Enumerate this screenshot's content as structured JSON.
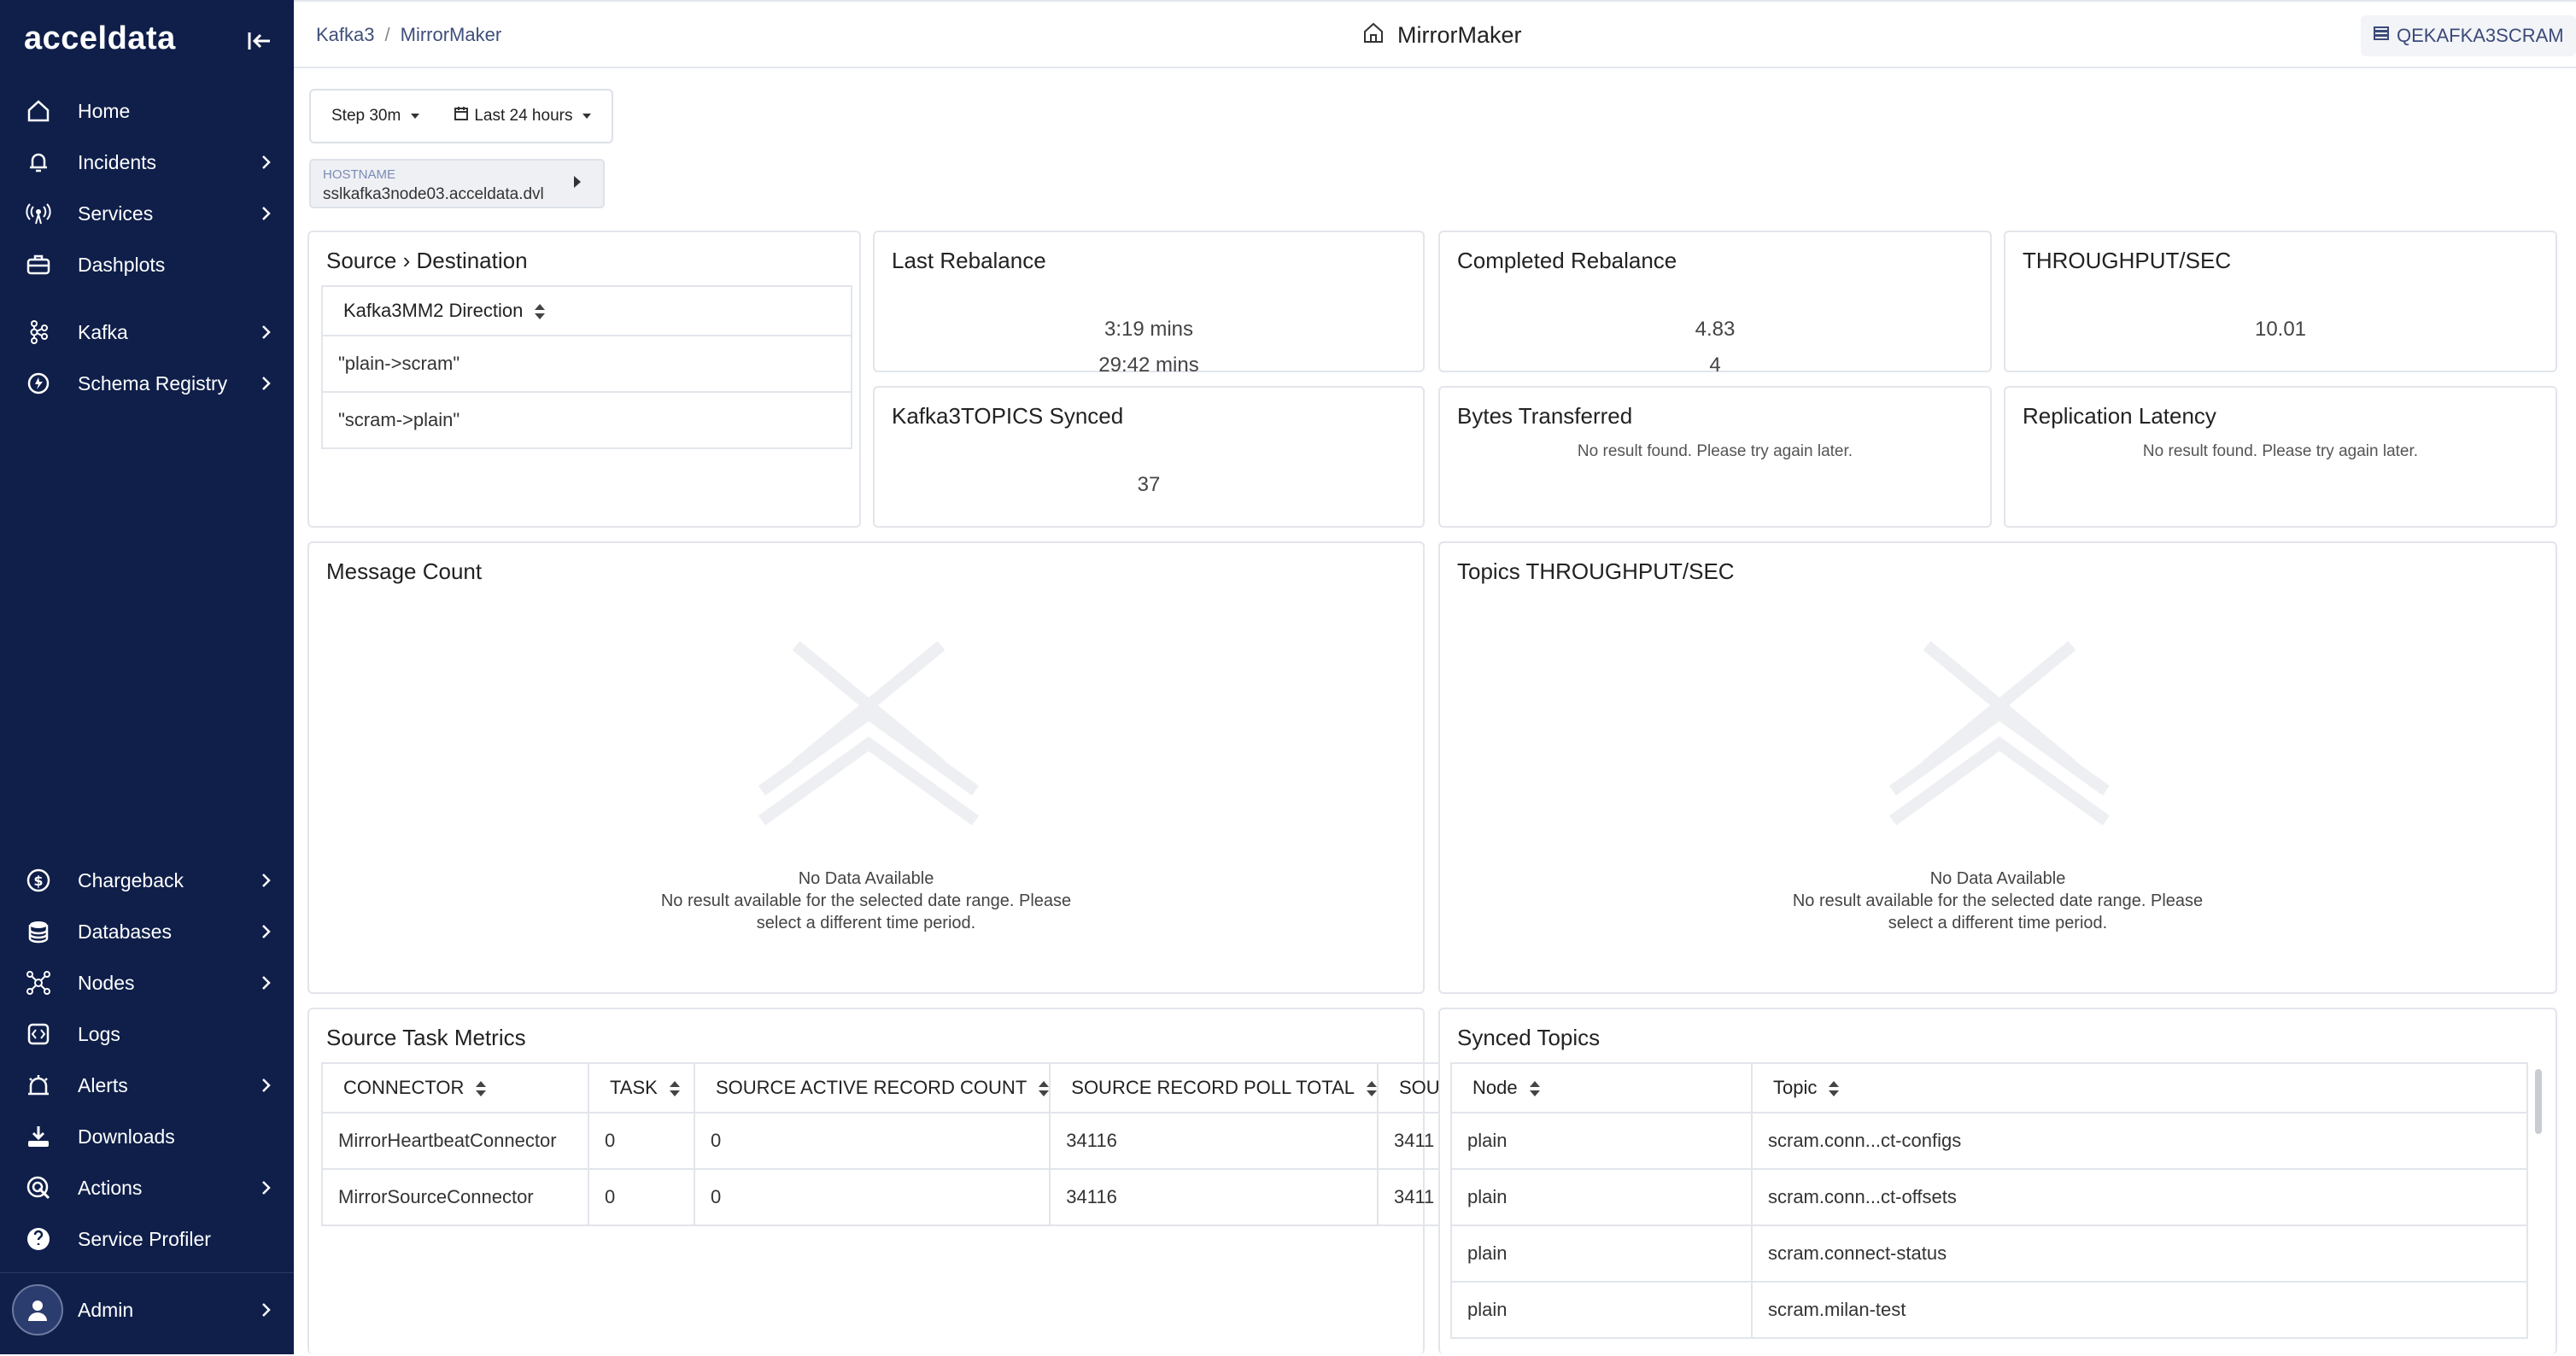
{
  "brand": {
    "logo": "acceldata"
  },
  "sidebar": {
    "items": [
      {
        "label": "Home"
      },
      {
        "label": "Incidents"
      },
      {
        "label": "Services"
      },
      {
        "label": "Dashplots"
      },
      {
        "label": "Kafka"
      },
      {
        "label": "Schema Registry"
      },
      {
        "label": "Chargeback"
      },
      {
        "label": "Databases"
      },
      {
        "label": "Nodes"
      },
      {
        "label": "Logs"
      },
      {
        "label": "Alerts"
      },
      {
        "label": "Downloads"
      },
      {
        "label": "Actions"
      },
      {
        "label": "Service Profiler"
      }
    ],
    "admin": {
      "label": "Admin"
    }
  },
  "header": {
    "breadcrumb": [
      "Kafka3",
      "MirrorMaker"
    ],
    "title": "MirrorMaker",
    "cluster": "QEKAFKA3SCRAM"
  },
  "filters": {
    "step": "Step 30m",
    "range": "Last 24 hours",
    "hostname_key": "HOSTNAME",
    "hostname_value": "sslkafka3node03.acceldata.dvl"
  },
  "cards": {
    "source_dest": {
      "title": "Source › Destination",
      "column": "Kafka3MM2 Direction",
      "rows": [
        "\"plain->scram\"",
        "\"scram->plain\""
      ]
    },
    "last_rebalance": {
      "title": "Last Rebalance",
      "values": [
        "3:19 mins",
        "29:42 mins"
      ]
    },
    "completed_rebalance": {
      "title": "Completed Rebalance",
      "values": [
        "4.83",
        "4"
      ]
    },
    "throughput": {
      "title": "THROUGHPUT/SEC",
      "value": "10.01"
    },
    "topics_synced": {
      "title": "Kafka3TOPICS Synced",
      "value": "37"
    },
    "bytes_transferred": {
      "title": "Bytes Transferred",
      "message": "No result found. Please try again later."
    },
    "replication_latency": {
      "title": "Replication Latency",
      "message": "No result found. Please try again later."
    },
    "message_count": {
      "title": "Message Count",
      "nodata_title": "No Data Available",
      "nodata_line1": "No result available for the selected date range. Please",
      "nodata_line2": "select a different time period."
    },
    "topics_throughput": {
      "title": "Topics THROUGHPUT/SEC",
      "nodata_title": "No Data Available",
      "nodata_line1": "No result available for the selected date range. Please",
      "nodata_line2": "select a different time period."
    },
    "source_task_metrics": {
      "title": "Source Task Metrics",
      "columns": [
        "CONNECTOR",
        "TASK",
        "SOURCE ACTIVE RECORD COUNT",
        "SOURCE RECORD POLL TOTAL",
        "SOU"
      ],
      "rows": [
        [
          "MirrorHeartbeatConnector",
          "0",
          "0",
          "34116",
          "3411"
        ],
        [
          "MirrorSourceConnector",
          "0",
          "0",
          "34116",
          "3411"
        ]
      ]
    },
    "synced_topics": {
      "title": "Synced Topics",
      "columns": [
        "Node",
        "Topic"
      ],
      "rows": [
        [
          "plain",
          "scram.conn...ct-configs"
        ],
        [
          "plain",
          "scram.conn...ct-offsets"
        ],
        [
          "plain",
          "scram.connect-status"
        ],
        [
          "plain",
          "scram.milan-test"
        ]
      ]
    }
  }
}
